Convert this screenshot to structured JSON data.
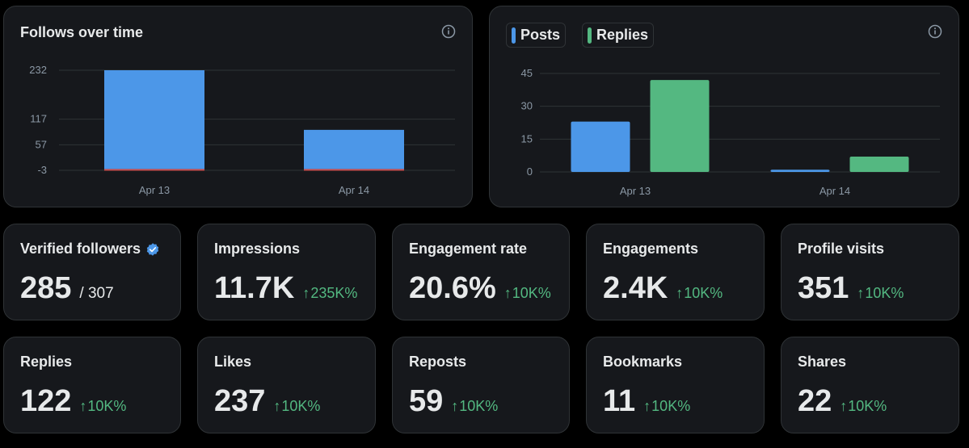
{
  "colors": {
    "posts": "#4c97e8",
    "replies": "#54b881",
    "follows_bar": "#4c97e8",
    "unfollows": "#d04f4f",
    "positive": "#53b881",
    "verified": "#4c97e8"
  },
  "follows_chart": {
    "title": "Follows over time",
    "info_icon": "info-icon"
  },
  "activity_chart": {
    "info_icon": "info-icon",
    "legend": [
      {
        "label": "Posts"
      },
      {
        "label": "Replies"
      }
    ]
  },
  "chart_data": [
    {
      "type": "bar",
      "title": "Follows over time",
      "categories": [
        "Apr 13",
        "Apr 14"
      ],
      "series": [
        {
          "name": "Follows",
          "values": [
            232,
            92
          ]
        },
        {
          "name": "Unfollows",
          "values": [
            -3,
            -2
          ]
        }
      ],
      "yticks": [
        232,
        117,
        57,
        -3
      ],
      "ylim": [
        -3,
        232
      ],
      "xlabel": "",
      "ylabel": ""
    },
    {
      "type": "bar",
      "title": "",
      "categories": [
        "Apr 13",
        "Apr 14"
      ],
      "series": [
        {
          "name": "Posts",
          "values": [
            23,
            1
          ]
        },
        {
          "name": "Replies",
          "values": [
            42,
            7
          ]
        }
      ],
      "yticks": [
        45,
        30,
        15,
        0
      ],
      "ylim": [
        0,
        45
      ],
      "legend_position": "top-left",
      "xlabel": "",
      "ylabel": ""
    }
  ],
  "stats": [
    {
      "label": "Verified followers",
      "value": "285",
      "sub": "/ 307",
      "verified": true
    },
    {
      "label": "Impressions",
      "value": "11.7K",
      "arrow": "↑",
      "change": "235K%"
    },
    {
      "label": "Engagement rate",
      "value": "20.6%",
      "arrow": "↑",
      "change": "10K%"
    },
    {
      "label": "Engagements",
      "value": "2.4K",
      "arrow": "↑",
      "change": "10K%"
    },
    {
      "label": "Profile visits",
      "value": "351",
      "arrow": "↑",
      "change": "10K%"
    },
    {
      "label": "Replies",
      "value": "122",
      "arrow": "↑",
      "change": "10K%"
    },
    {
      "label": "Likes",
      "value": "237",
      "arrow": "↑",
      "change": "10K%"
    },
    {
      "label": "Reposts",
      "value": "59",
      "arrow": "↑",
      "change": "10K%"
    },
    {
      "label": "Bookmarks",
      "value": "11",
      "arrow": "↑",
      "change": "10K%"
    },
    {
      "label": "Shares",
      "value": "22",
      "arrow": "↑",
      "change": "10K%"
    }
  ]
}
